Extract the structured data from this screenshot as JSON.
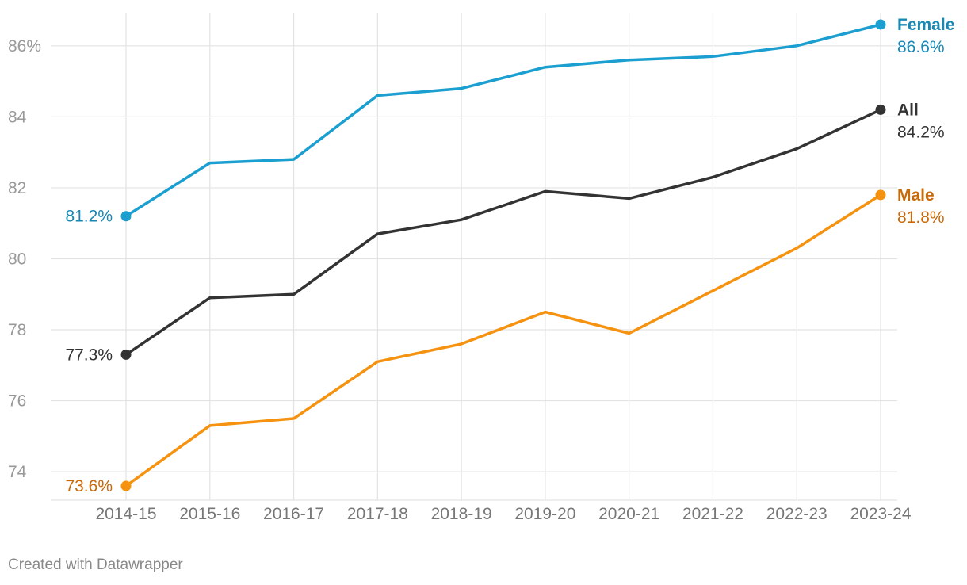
{
  "chart_data": {
    "type": "line",
    "categories": [
      "2014-15",
      "2015-16",
      "2016-17",
      "2017-18",
      "2018-19",
      "2019-20",
      "2020-21",
      "2021-22",
      "2022-23",
      "2023-24"
    ],
    "ylim": [
      73.4,
      86.8
    ],
    "y_ticks": [
      {
        "value": 74,
        "label": "74"
      },
      {
        "value": 76,
        "label": "76"
      },
      {
        "value": 78,
        "label": "78"
      },
      {
        "value": 80,
        "label": "80"
      },
      {
        "value": 82,
        "label": "82"
      },
      {
        "value": 84,
        "label": "84"
      },
      {
        "value": 86,
        "label": "86%"
      }
    ],
    "grid": true,
    "series": [
      {
        "name": "Female",
        "color": "#1a9fd0",
        "label_color": "#1888b5",
        "values": [
          81.2,
          82.7,
          82.8,
          84.6,
          84.8,
          85.4,
          85.6,
          85.7,
          86.0,
          86.6
        ],
        "start_label": "81.2%",
        "end_label": "86.6%"
      },
      {
        "name": "All",
        "color": "#333333",
        "label_color": "#333333",
        "values": [
          77.3,
          78.9,
          79.0,
          80.7,
          81.1,
          81.9,
          81.7,
          82.3,
          83.1,
          84.2
        ],
        "start_label": "77.3%",
        "end_label": "84.2%"
      },
      {
        "name": "Male",
        "color": "#f5920f",
        "label_color": "#c8690a",
        "values": [
          73.6,
          75.3,
          75.5,
          77.1,
          77.6,
          78.5,
          77.9,
          79.1,
          80.3,
          81.8
        ],
        "start_label": "73.6%",
        "end_label": "81.8%"
      }
    ]
  },
  "footer": {
    "credit": "Created with Datawrapper"
  }
}
